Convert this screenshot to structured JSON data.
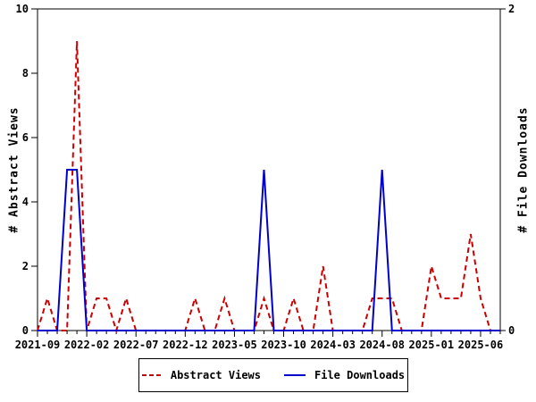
{
  "axes": {
    "left": {
      "label": "# Abstract Views",
      "ticks": [
        0,
        2,
        4,
        6,
        8,
        10
      ],
      "range": [
        0,
        10
      ]
    },
    "right": {
      "label": "# File Downloads",
      "ticks": [
        0,
        2
      ],
      "range": [
        0,
        2
      ]
    },
    "x": {
      "major_tick_labels": [
        "2021-09",
        "2022-02",
        "2022-07",
        "2022-12",
        "2023-05",
        "2023-10",
        "2024-03",
        "2024-08",
        "2025-01",
        "2025-06"
      ],
      "major_every_months": 5
    }
  },
  "legend": {
    "items": [
      {
        "label": "Abstract Views",
        "color": "#cc0000",
        "line_style": "dashed"
      },
      {
        "label": "File Downloads",
        "color": "#0000cc",
        "line_style": "solid"
      }
    ]
  },
  "colors": {
    "abstract_views": "#cc0000",
    "file_downloads": "#0000cc",
    "axis": "#000000",
    "background": "#ffffff"
  },
  "chart_data": {
    "type": "line",
    "title": "",
    "xlabel": "",
    "left_ylabel": "# Abstract Views",
    "right_ylabel": "# File Downloads",
    "left_ylim": [
      0,
      10
    ],
    "right_ylim": [
      0,
      2
    ],
    "left_ticks": [
      0,
      2,
      4,
      6,
      8,
      10
    ],
    "right_ticks": [
      0,
      2
    ],
    "grid": false,
    "legend_position": "bottom-center",
    "months": [
      "2021-09",
      "2021-10",
      "2021-11",
      "2021-12",
      "2022-01",
      "2022-02",
      "2022-03",
      "2022-04",
      "2022-05",
      "2022-06",
      "2022-07",
      "2022-08",
      "2022-09",
      "2022-10",
      "2022-11",
      "2022-12",
      "2023-01",
      "2023-02",
      "2023-03",
      "2023-04",
      "2023-05",
      "2023-06",
      "2023-07",
      "2023-08",
      "2023-09",
      "2023-10",
      "2023-11",
      "2023-12",
      "2024-01",
      "2024-02",
      "2024-03",
      "2024-04",
      "2024-05",
      "2024-06",
      "2024-07",
      "2024-08",
      "2024-09",
      "2024-10",
      "2024-11",
      "2024-12",
      "2025-01",
      "2025-02",
      "2025-03",
      "2025-04",
      "2025-05",
      "2025-06",
      "2025-07",
      "2025-08"
    ],
    "series": [
      {
        "name": "Abstract Views",
        "axis": "left",
        "color": "#cc0000",
        "style": "dashed",
        "values": [
          0,
          1,
          0,
          0,
          9,
          0,
          1,
          1,
          0,
          1,
          0,
          0,
          0,
          0,
          0,
          0,
          1,
          0,
          0,
          1,
          0,
          0,
          0,
          1,
          0,
          0,
          1,
          0,
          0,
          2,
          0,
          0,
          0,
          0,
          1,
          1,
          1,
          0,
          0,
          0,
          2,
          1,
          1,
          1,
          3,
          1,
          0,
          0
        ]
      },
      {
        "name": "File Downloads",
        "axis": "right",
        "color": "#0000cc",
        "style": "solid",
        "values": [
          0,
          0,
          0,
          1,
          1,
          0,
          0,
          0,
          0,
          0,
          0,
          0,
          0,
          0,
          0,
          0,
          0,
          0,
          0,
          0,
          0,
          0,
          0,
          1,
          0,
          0,
          0,
          0,
          0,
          0,
          0,
          0,
          0,
          0,
          0,
          1,
          0,
          0,
          0,
          0,
          0,
          0,
          0,
          0,
          0,
          0,
          0,
          0
        ]
      }
    ]
  }
}
